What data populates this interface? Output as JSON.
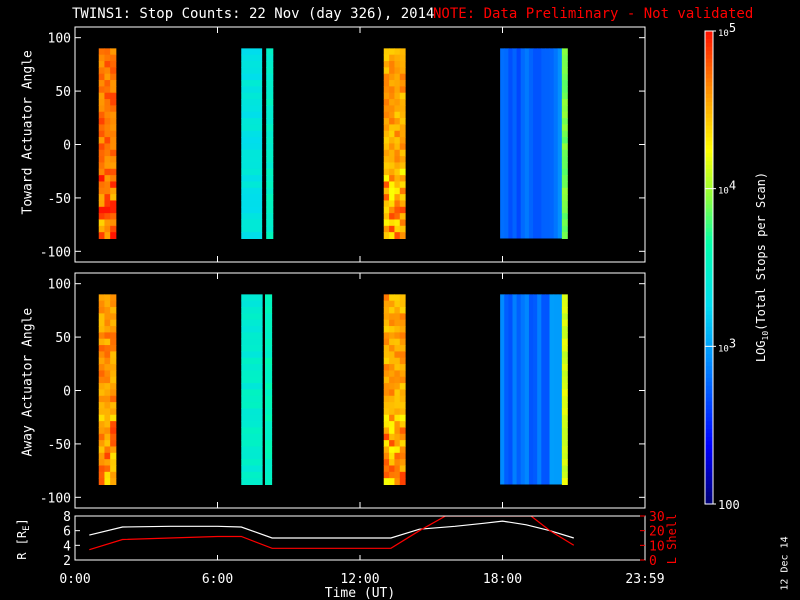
{
  "title": "TWINS1: Stop Counts: 22 Nov (day 326), 2014",
  "note": "NOTE: Data Preliminary - Not validated",
  "date_stamp": "12 Dec 14",
  "colors": {
    "background": "#000000",
    "foreground": "#ffffff",
    "accent": "#ff0000"
  },
  "chart_data": [
    {
      "type": "heatmap",
      "name": "toward",
      "ylabel": "Toward Actuator Angle",
      "xlim": [
        0,
        24
      ],
      "ylim": [
        -110,
        110
      ],
      "yticks": [
        100,
        50,
        0,
        -50,
        -100
      ],
      "y_extent": [
        -88,
        90
      ],
      "blocks": [
        {
          "x0": 1.0,
          "x1": 1.72,
          "level": 4.72,
          "pattern": "mixed"
        },
        {
          "x0": 7.0,
          "x1": 7.88,
          "level": 3.35,
          "pattern": "smooth"
        },
        {
          "x0": 8.05,
          "x1": 8.35,
          "level": 3.5,
          "pattern": "smooth"
        },
        {
          "x0": 13.0,
          "x1": 13.9,
          "level": 4.55,
          "pattern": "mixed"
        },
        {
          "x0": 17.9,
          "x1": 20.5,
          "level": 2.72,
          "pattern": "streaked"
        },
        {
          "x0": 20.5,
          "x1": 20.75,
          "level": 3.9,
          "pattern": "smooth"
        }
      ]
    },
    {
      "type": "heatmap",
      "name": "away",
      "ylabel": "Away Actuator Angle",
      "xlim": [
        0,
        24
      ],
      "ylim": [
        -110,
        110
      ],
      "yticks": [
        100,
        50,
        0,
        -50,
        -100
      ],
      "y_extent": [
        -88,
        90
      ],
      "blocks": [
        {
          "x0": 1.0,
          "x1": 1.72,
          "level": 4.62,
          "pattern": "mixed"
        },
        {
          "x0": 7.0,
          "x1": 7.9,
          "level": 3.45,
          "pattern": "smooth"
        },
        {
          "x0": 8.0,
          "x1": 8.3,
          "level": 3.55,
          "pattern": "smooth"
        },
        {
          "x0": 13.0,
          "x1": 13.9,
          "level": 4.55,
          "pattern": "mixed"
        },
        {
          "x0": 17.9,
          "x1": 20.5,
          "level": 2.78,
          "pattern": "streaked"
        },
        {
          "x0": 20.5,
          "x1": 20.75,
          "level": 4.15,
          "pattern": "smooth"
        }
      ]
    },
    {
      "type": "line",
      "name": "ephemeris",
      "ylabel_left": "R [RE]",
      "ylabel_right": "L Shell",
      "xlabel": "Time (UT)",
      "xlim": [
        0,
        24
      ],
      "x_ticks": [
        "0:00",
        "6:00",
        "12:00",
        "18:00",
        "23:59"
      ],
      "x_tick_values": [
        0,
        6,
        12,
        18,
        24
      ],
      "left_ylim": [
        2,
        8
      ],
      "left_ticks": [
        2,
        4,
        6,
        8
      ],
      "right_ylim": [
        0,
        30
      ],
      "right_ticks": [
        0,
        10,
        20,
        30
      ],
      "series": [
        {
          "axis": "left",
          "color": "#ffffff",
          "x": [
            0.6,
            2.0,
            4.0,
            6.0,
            7.0,
            8.3,
            10.0,
            12.0,
            13.3,
            14.5,
            16.0,
            17.2,
            18.0,
            19.0,
            20.0,
            21.0
          ],
          "y": [
            5.4,
            6.5,
            6.6,
            6.6,
            6.5,
            5.0,
            5.0,
            5.0,
            5.0,
            6.2,
            6.6,
            7.0,
            7.3,
            6.8,
            6.0,
            5.0
          ]
        },
        {
          "axis": "right",
          "color": "#ff0000",
          "x": [
            0.6,
            2.0,
            4.0,
            6.0,
            7.0,
            8.3,
            10.0,
            12.0,
            13.3,
            14.5,
            15.6,
            19.2,
            20.0,
            21.0
          ],
          "y": [
            7,
            14,
            15,
            16,
            16,
            8,
            8,
            8,
            8,
            20,
            30,
            30,
            20,
            10
          ]
        }
      ]
    }
  ],
  "colorbar": {
    "label": "LOG10(Total Stops per Scan)",
    "label_main": "LOG",
    "label_sub": "10",
    "label_rest": "(Total Stops per Scan)",
    "min": 2,
    "max": 5,
    "ticks": [
      {
        "value": 5,
        "base": "10",
        "exp": "5"
      },
      {
        "value": 4,
        "base": "10",
        "exp": "4"
      },
      {
        "value": 3,
        "base": "10",
        "exp": "3"
      },
      {
        "value": 2,
        "base": "100",
        "exp": ""
      }
    ]
  }
}
